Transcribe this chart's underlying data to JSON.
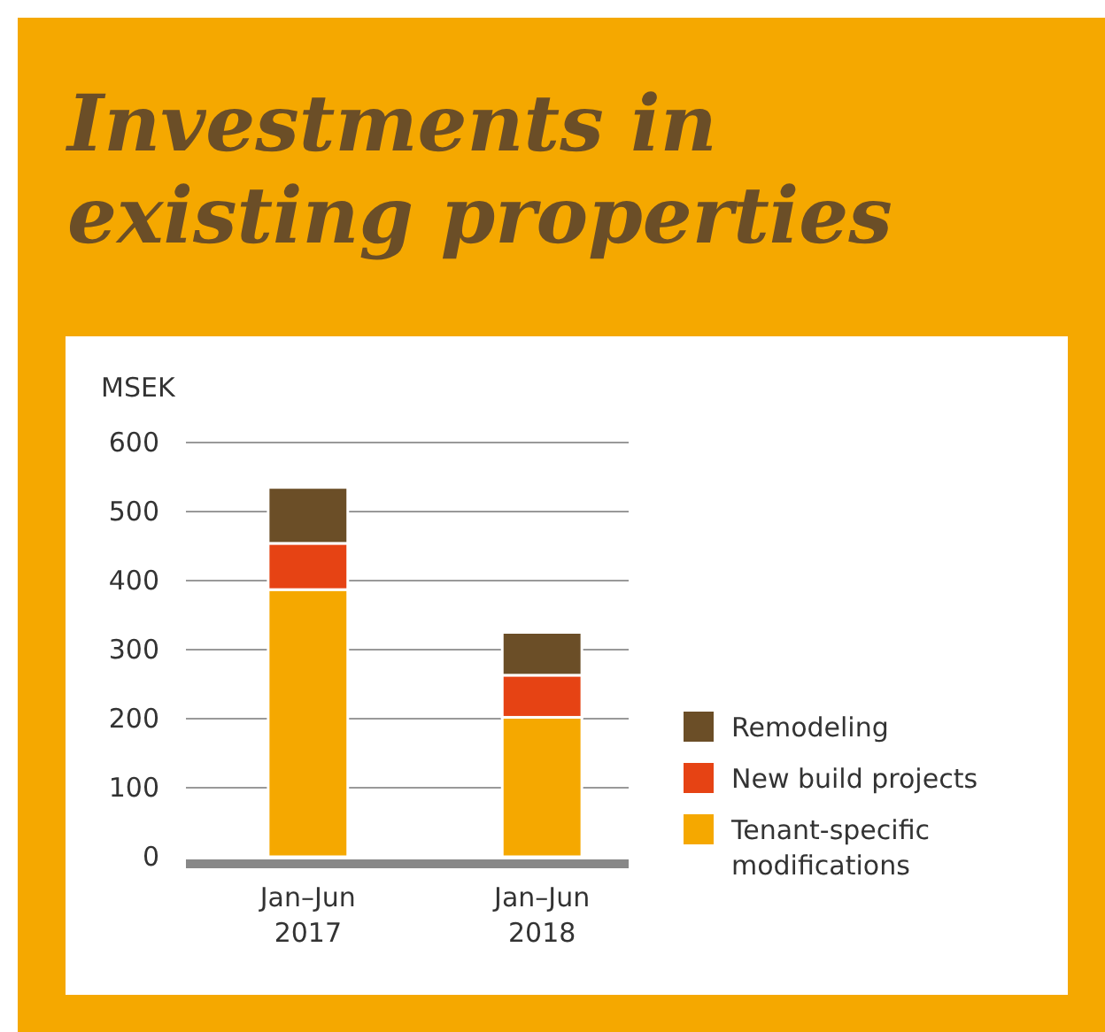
{
  "chart_data": {
    "type": "bar",
    "title": "Investments in existing properties",
    "ylabel": "MSEK",
    "categories": [
      "Jan–Jun 2017",
      "Jan–Jun 2018"
    ],
    "stacked": true,
    "ylim": [
      0,
      600
    ],
    "yticks": [
      0,
      100,
      200,
      300,
      400,
      500,
      600
    ],
    "grid": "y",
    "legend": "right",
    "series": [
      {
        "name": "Tenant-specific modifications",
        "color": "#f5a800",
        "values": [
          387,
          202
        ]
      },
      {
        "name": "New build projects",
        "color": "#e64314",
        "values": [
          67,
          61
        ]
      },
      {
        "name": "Remodeling",
        "color": "#6b4e27",
        "values": [
          81,
          62
        ]
      }
    ]
  }
}
